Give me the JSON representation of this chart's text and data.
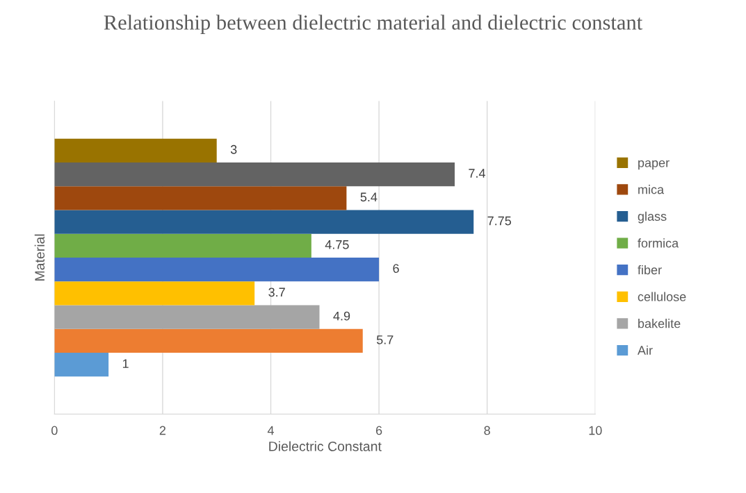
{
  "chart_data": {
    "type": "bar",
    "orientation": "horizontal",
    "title": "Relationship between dielectric material and dielectric constant",
    "xlabel": "Dielectric Constant",
    "ylabel": "Material",
    "categories": [
      null
    ],
    "series": [
      {
        "name": "Air",
        "color": "#5b9bd5",
        "values": [
          1
        ]
      },
      {
        "color": "#ed7d31",
        "values": [
          5.7
        ]
      },
      {
        "name": "bakelite",
        "color": "#a5a5a5",
        "values": [
          4.9
        ]
      },
      {
        "name": "cellulose",
        "color": "#ffc000",
        "values": [
          3.7
        ]
      },
      {
        "name": "fiber",
        "color": "#4472c4",
        "values": [
          6
        ]
      },
      {
        "name": "formica",
        "color": "#70ad47",
        "values": [
          4.75
        ]
      },
      {
        "name": "glass",
        "color": "#255e91",
        "values": [
          7.75
        ]
      },
      {
        "name": "mica",
        "color": "#9e480e",
        "values": [
          5.4
        ]
      },
      {
        "color": "#636363",
        "values": [
          7.4
        ]
      },
      {
        "name": "paper",
        "color": "#997300",
        "values": [
          3
        ]
      }
    ],
    "xlim": [
      0,
      10
    ],
    "xticks": [
      0,
      2,
      4,
      6,
      8,
      10
    ],
    "grid": "x",
    "legend": "right",
    "data_labels": true
  }
}
